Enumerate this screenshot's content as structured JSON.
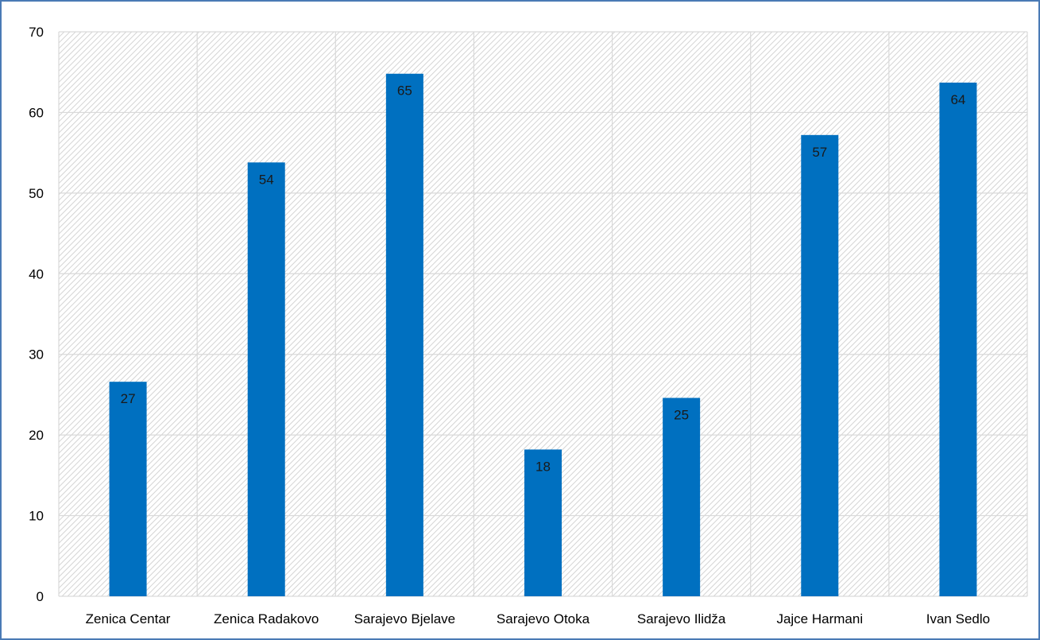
{
  "chart_data": {
    "type": "bar",
    "categories": [
      "Zenica Centar",
      "Zenica Radakovo",
      "Sarajevo Bjelave",
      "Sarajevo Otoka",
      "Sarajevo Ilidža",
      "Jajce Harmani",
      "Ivan Sedlo"
    ],
    "values": [
      26.6,
      53.8,
      64.8,
      18.2,
      24.6,
      57.2,
      63.7
    ],
    "data_labels": [
      "27",
      "54",
      "65",
      "18",
      "25",
      "57",
      "64"
    ],
    "title": "",
    "xlabel": "",
    "ylabel": "",
    "ylim": [
      0,
      70
    ],
    "yticks": [
      "0",
      "10",
      "20",
      "30",
      "40",
      "50",
      "60",
      "70"
    ],
    "grid": true,
    "legend": "none",
    "colors": {
      "bar": "#0070c0",
      "grid": "#d9d9d9",
      "border": "#4a7ab5",
      "hatch": "#d4d4d4"
    }
  }
}
